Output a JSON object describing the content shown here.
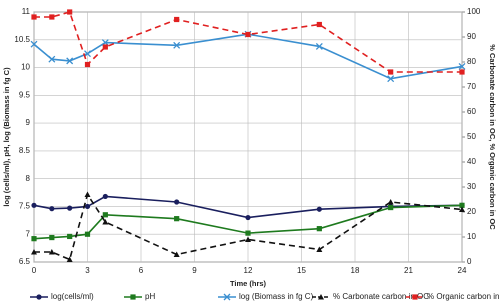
{
  "chart_data": {
    "type": "line",
    "x_label": "Time (hrs)",
    "y_label": "log (cells/ml), pH, log (Biomass in fg C)",
    "y2_label": "% Carbonate carbon in OC, % Organic carbon in OC",
    "x": [
      0,
      1,
      2,
      3,
      4,
      8,
      12,
      16,
      20,
      24
    ],
    "xlim": [
      0,
      24
    ],
    "xticks": [
      0,
      3,
      6,
      9,
      12,
      15,
      18,
      21,
      24
    ],
    "ylim": [
      6.5,
      11
    ],
    "yticks": [
      6.5,
      7,
      7.5,
      8,
      8.5,
      9,
      9.5,
      10,
      10.5,
      11
    ],
    "y2lim": [
      0,
      100
    ],
    "y2ticks": [
      0,
      10,
      20,
      30,
      40,
      50,
      60,
      70,
      80,
      90,
      100
    ],
    "grid": true,
    "series": [
      {
        "name": "log(cells/ml)",
        "color": "#1a1f5e",
        "marker": "circle",
        "dash": false,
        "values": [
          7.52,
          7.46,
          7.47,
          7.5,
          7.68,
          7.58,
          7.3,
          7.45,
          7.5,
          7.52
        ]
      },
      {
        "name": "pH",
        "color": "#1e7a1e",
        "marker": "square",
        "dash": false,
        "values": [
          6.92,
          6.94,
          6.96,
          7.0,
          7.35,
          7.28,
          7.02,
          7.1,
          7.48,
          7.52
        ]
      },
      {
        "name": "log (Biomass in fg C)",
        "color": "#3a8fd0",
        "marker": "x",
        "dash": false,
        "values": [
          10.42,
          10.15,
          10.12,
          10.25,
          10.45,
          10.4,
          10.6,
          10.38,
          9.8,
          10.02
        ]
      },
      {
        "name": "% Carbonate carbon in OC",
        "color": "#111111",
        "marker": "triangle",
        "dash": true,
        "axis": "y2",
        "values": [
          4,
          4,
          1,
          27,
          16,
          3,
          9,
          5,
          24,
          21
        ]
      },
      {
        "name": "% Organic carbon in OC",
        "color": "#e02020",
        "marker": "square",
        "dash": true,
        "axis": "y2",
        "values": [
          98,
          98,
          100,
          79,
          86,
          97,
          91,
          95,
          76,
          76
        ]
      }
    ]
  }
}
